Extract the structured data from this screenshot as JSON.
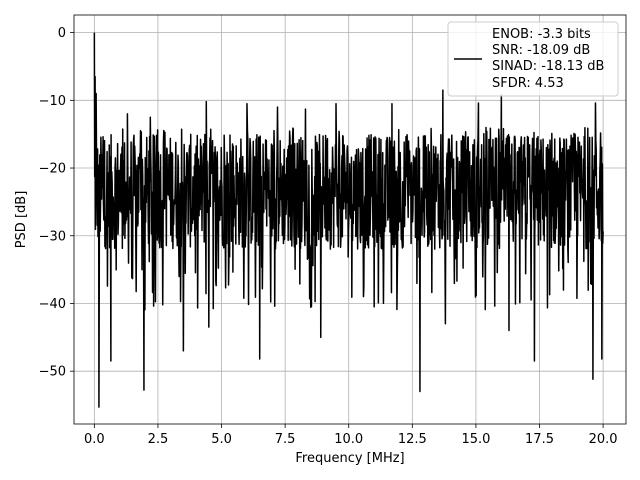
{
  "chart_data": {
    "type": "line",
    "title": "",
    "xlabel": "Frequency [MHz]",
    "ylabel": "PSD [dB]",
    "xlim": [
      -0.8,
      20.9
    ],
    "ylim": [
      -57.8,
      2.6
    ],
    "xticks": [
      0.0,
      2.5,
      5.0,
      7.5,
      10.0,
      12.5,
      15.0,
      17.5,
      20.0
    ],
    "xtick_labels": [
      "0.0",
      "2.5",
      "5.0",
      "7.5",
      "10.0",
      "12.5",
      "15.0",
      "17.5",
      "20.0"
    ],
    "yticks": [
      0,
      -10,
      -20,
      -30,
      -40,
      -50
    ],
    "ytick_labels": [
      "0",
      "−10",
      "−20",
      "−30",
      "−40",
      "−50"
    ],
    "grid": true,
    "legend_position": "top-right",
    "legend": [
      "ENOB: -3.3 bits",
      "SNR: -18.09 dB",
      "SINAD: -18.13 dB",
      "SFDR: 4.53"
    ],
    "line_color": "#000000",
    "series": [
      {
        "x_range": [
          0.0,
          20.0
        ],
        "num_points": 1400,
        "noise_band_db": [
          -32,
          -15
        ],
        "peaks": [
          {
            "x": 0.0,
            "y": 0.0
          },
          {
            "x": 0.03,
            "y": -6.5
          },
          {
            "x": 0.07,
            "y": -9.0
          },
          {
            "x": 1.3,
            "y": -12.0
          },
          {
            "x": 2.2,
            "y": -12.5
          },
          {
            "x": 4.4,
            "y": -10.2
          },
          {
            "x": 6.0,
            "y": -10.5
          },
          {
            "x": 7.2,
            "y": -11.0
          },
          {
            "x": 8.3,
            "y": -11.3
          },
          {
            "x": 9.5,
            "y": -10.5
          },
          {
            "x": 11.7,
            "y": -10.5
          },
          {
            "x": 13.7,
            "y": -8.5
          },
          {
            "x": 15.1,
            "y": -10.4
          },
          {
            "x": 16.0,
            "y": -9.2
          },
          {
            "x": 19.7,
            "y": -10.4
          }
        ],
        "dips": [
          {
            "x": 0.18,
            "y": -55.3
          },
          {
            "x": 0.65,
            "y": -48.5
          },
          {
            "x": 1.95,
            "y": -52.8
          },
          {
            "x": 3.5,
            "y": -47.0
          },
          {
            "x": 4.5,
            "y": -43.5
          },
          {
            "x": 6.5,
            "y": -48.2
          },
          {
            "x": 8.9,
            "y": -45.0
          },
          {
            "x": 11.0,
            "y": -40.5
          },
          {
            "x": 12.8,
            "y": -53.0
          },
          {
            "x": 13.8,
            "y": -43.0
          },
          {
            "x": 16.3,
            "y": -44.0
          },
          {
            "x": 17.3,
            "y": -48.5
          },
          {
            "x": 19.6,
            "y": -51.2
          },
          {
            "x": 19.95,
            "y": -48.2
          }
        ]
      }
    ]
  }
}
